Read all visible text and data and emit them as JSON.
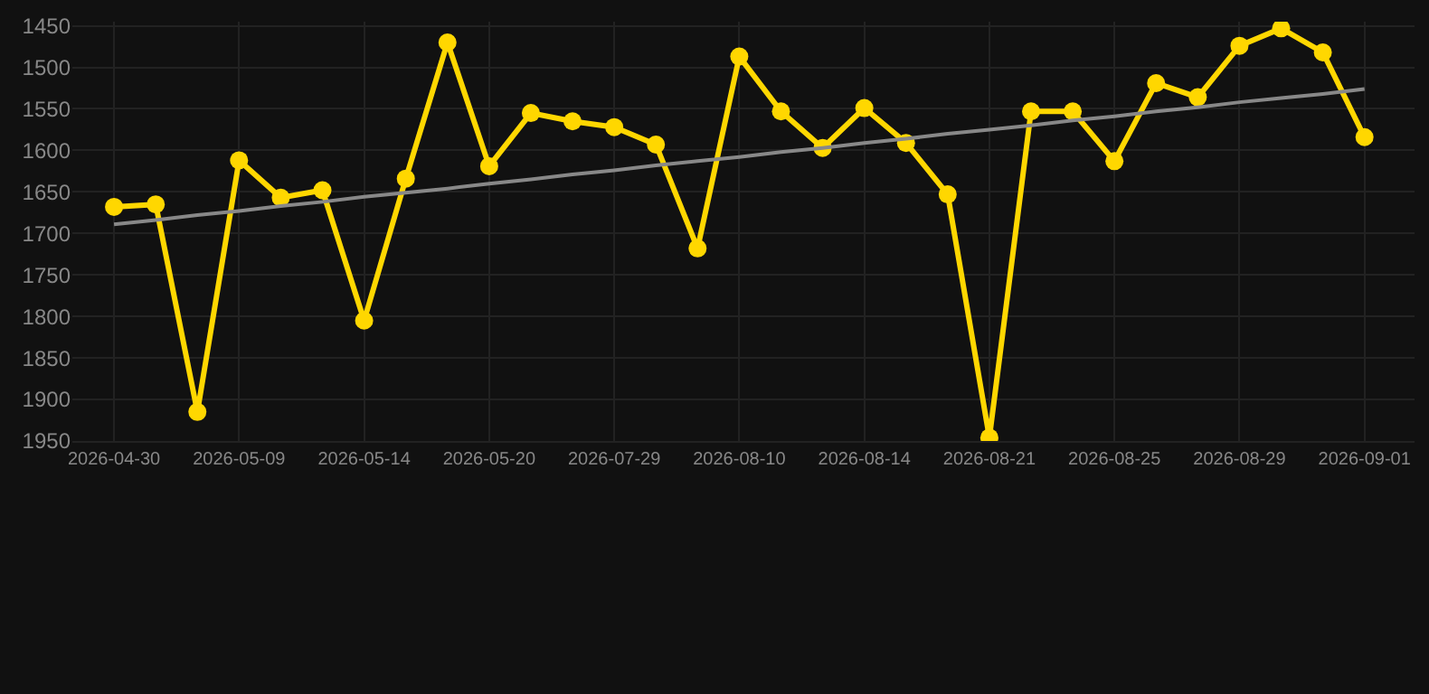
{
  "chart_data": {
    "type": "line",
    "categories": [
      "2026-04-30",
      null,
      null,
      "2026-05-09",
      null,
      null,
      "2026-05-14",
      null,
      null,
      "2026-05-20",
      null,
      null,
      "2026-07-29",
      null,
      null,
      "2026-08-10",
      null,
      null,
      "2026-08-14",
      null,
      null,
      "2026-08-21",
      null,
      null,
      "2026-08-25",
      null,
      null,
      "2026-08-29",
      null,
      null,
      "2026-09-01"
    ],
    "series": [
      {
        "color": "#ffd700",
        "values": [
          1668,
          1665,
          1915,
          1612,
          1657,
          1648,
          1805,
          1634,
          1470,
          1619,
          1555,
          1565,
          1572,
          1593,
          1718,
          1487,
          1553,
          1597,
          1549,
          1591,
          1653,
          1946,
          1553,
          1553,
          1613,
          1519,
          1536,
          1474,
          1453,
          1482,
          1584
        ]
      },
      {
        "type": "line",
        "color": "#888888",
        "values": [
          1689,
          1684,
          1678,
          1673,
          1667,
          1662,
          1656,
          1651,
          1646,
          1640,
          1635,
          1629,
          1624,
          1618,
          1613,
          1608,
          1602,
          1597,
          1591,
          1586,
          1580,
          1575,
          1570,
          1564,
          1559,
          1553,
          1548,
          1542,
          1537,
          1532,
          1526
        ],
        "marker": "none"
      }
    ],
    "ylim": [
      1950,
      1445
    ],
    "yticks": [
      1450,
      1500,
      1550,
      1600,
      1650,
      1700,
      1750,
      1800,
      1850,
      1900,
      1950
    ],
    "grid": true,
    "marker": "circle",
    "line_style": "solid"
  }
}
